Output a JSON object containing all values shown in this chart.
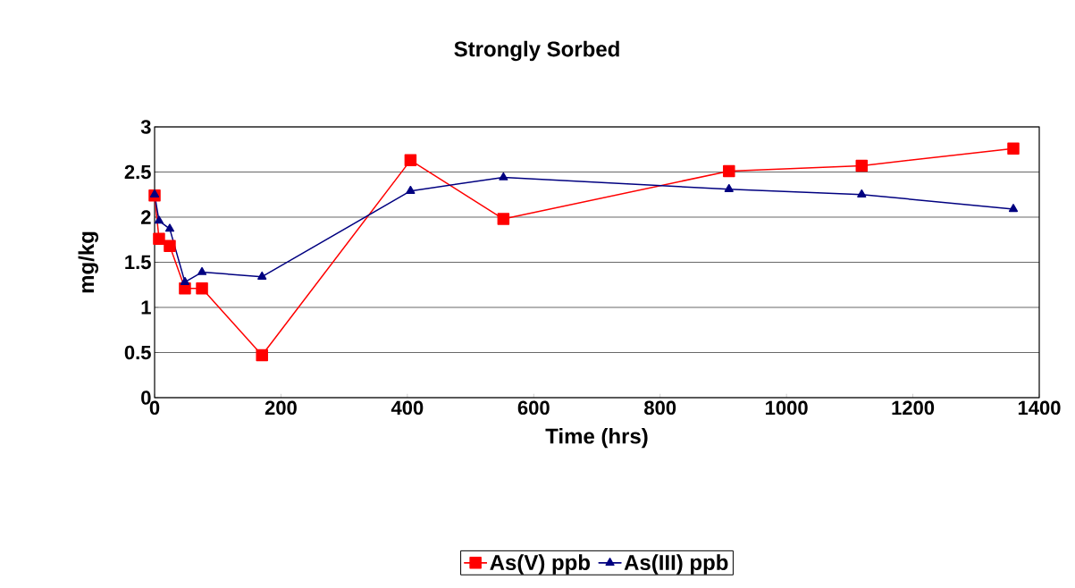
{
  "chart_data": {
    "type": "line",
    "title": "Strongly Sorbed",
    "xlabel": "Time (hrs)",
    "ylabel": "mg/kg",
    "x": [
      0,
      7,
      24,
      48,
      75,
      170,
      405,
      552,
      909,
      1119,
      1359
    ],
    "series": [
      {
        "name": "As(V) ppb",
        "color": "#ff0000",
        "marker": "square",
        "values": [
          2.24,
          1.76,
          1.68,
          1.21,
          1.21,
          0.47,
          2.63,
          1.98,
          2.51,
          2.57,
          2.76
        ]
      },
      {
        "name": "As(III) ppb",
        "color": "#000080",
        "marker": "triangle",
        "values": [
          2.25,
          1.96,
          1.87,
          1.28,
          1.39,
          1.34,
          2.29,
          2.44,
          2.31,
          2.25,
          2.09
        ]
      }
    ],
    "xlim": [
      0,
      1400
    ],
    "xticks": [
      0,
      200,
      400,
      600,
      800,
      1000,
      1200,
      1400
    ],
    "ylim": [
      0,
      3
    ],
    "yticks": [
      0,
      0.5,
      1,
      1.5,
      2,
      2.5,
      3
    ],
    "grid": "y",
    "legend": "bottom",
    "line_style": "solid"
  }
}
